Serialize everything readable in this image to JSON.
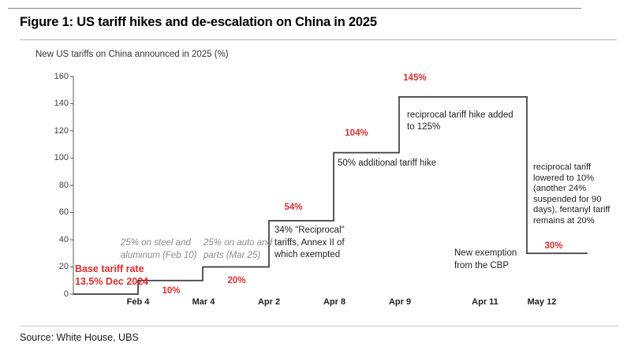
{
  "figure": {
    "title": "Figure 1: US tariff hikes and de-escalation on China in 2025",
    "source": "Source: White House, UBS"
  },
  "chart_data": {
    "type": "line",
    "subtype": "step",
    "title": "New US tariffs on China announced in 2025 (%)",
    "categories": [
      "Feb 4",
      "Mar 4",
      "Apr 2",
      "Apr 8",
      "Apr 9",
      "Apr 11",
      "May 12"
    ],
    "values": [
      10,
      20,
      54,
      104,
      145,
      145,
      30
    ],
    "start_value": 0,
    "ylim": [
      0,
      160
    ],
    "yticks": [
      0,
      20,
      40,
      60,
      80,
      100,
      120,
      140,
      160
    ],
    "grid": false,
    "legend": "none",
    "line_color": "#3d3d3d",
    "axis_color": "#595959",
    "accent_red": "#e22d2d",
    "annotation_gray": "#8a8a8a",
    "annotations": [
      {
        "id": "base-tariff-note",
        "text": "Base tariff rate\n13.5% Dec 2024",
        "color": "red"
      },
      {
        "id": "steel-aluminum-note",
        "text": "25% on steel and\naluminum (Feb 10)",
        "color": "gray"
      },
      {
        "id": "auto-parts-note",
        "text": "25% on auto and\nparts (Mar 25)",
        "color": "gray"
      },
      {
        "id": "value-label-10",
        "text": "10%",
        "color": "red"
      },
      {
        "id": "value-label-20",
        "text": "20%",
        "color": "red"
      },
      {
        "id": "value-label-54",
        "text": "54%",
        "color": "red"
      },
      {
        "id": "reciprocal-34-note",
        "text": "34% \"Reciprocal\"\ntariffs, Annex II of\nwhich exempted",
        "color": "black"
      },
      {
        "id": "value-label-104",
        "text": "104%",
        "color": "red"
      },
      {
        "id": "additional-50-note",
        "text": "50% additional tariff hike",
        "color": "black"
      },
      {
        "id": "value-label-145",
        "text": "145%",
        "color": "red"
      },
      {
        "id": "reciprocal-125-note",
        "text": "reciprocal tariff hike added\nto 125%",
        "color": "black"
      },
      {
        "id": "cbp-exemption-note",
        "text": "New exemption\nfrom the CBP",
        "color": "black"
      },
      {
        "id": "lowered-tariff-note",
        "text": "reciprocal tariff\nlowered to 10%\n(another 24%\nsuspended for 90\ndays), fentanyl tariff\nremains at 20%",
        "color": "black"
      },
      {
        "id": "value-label-30",
        "text": "30%",
        "color": "red"
      }
    ]
  }
}
